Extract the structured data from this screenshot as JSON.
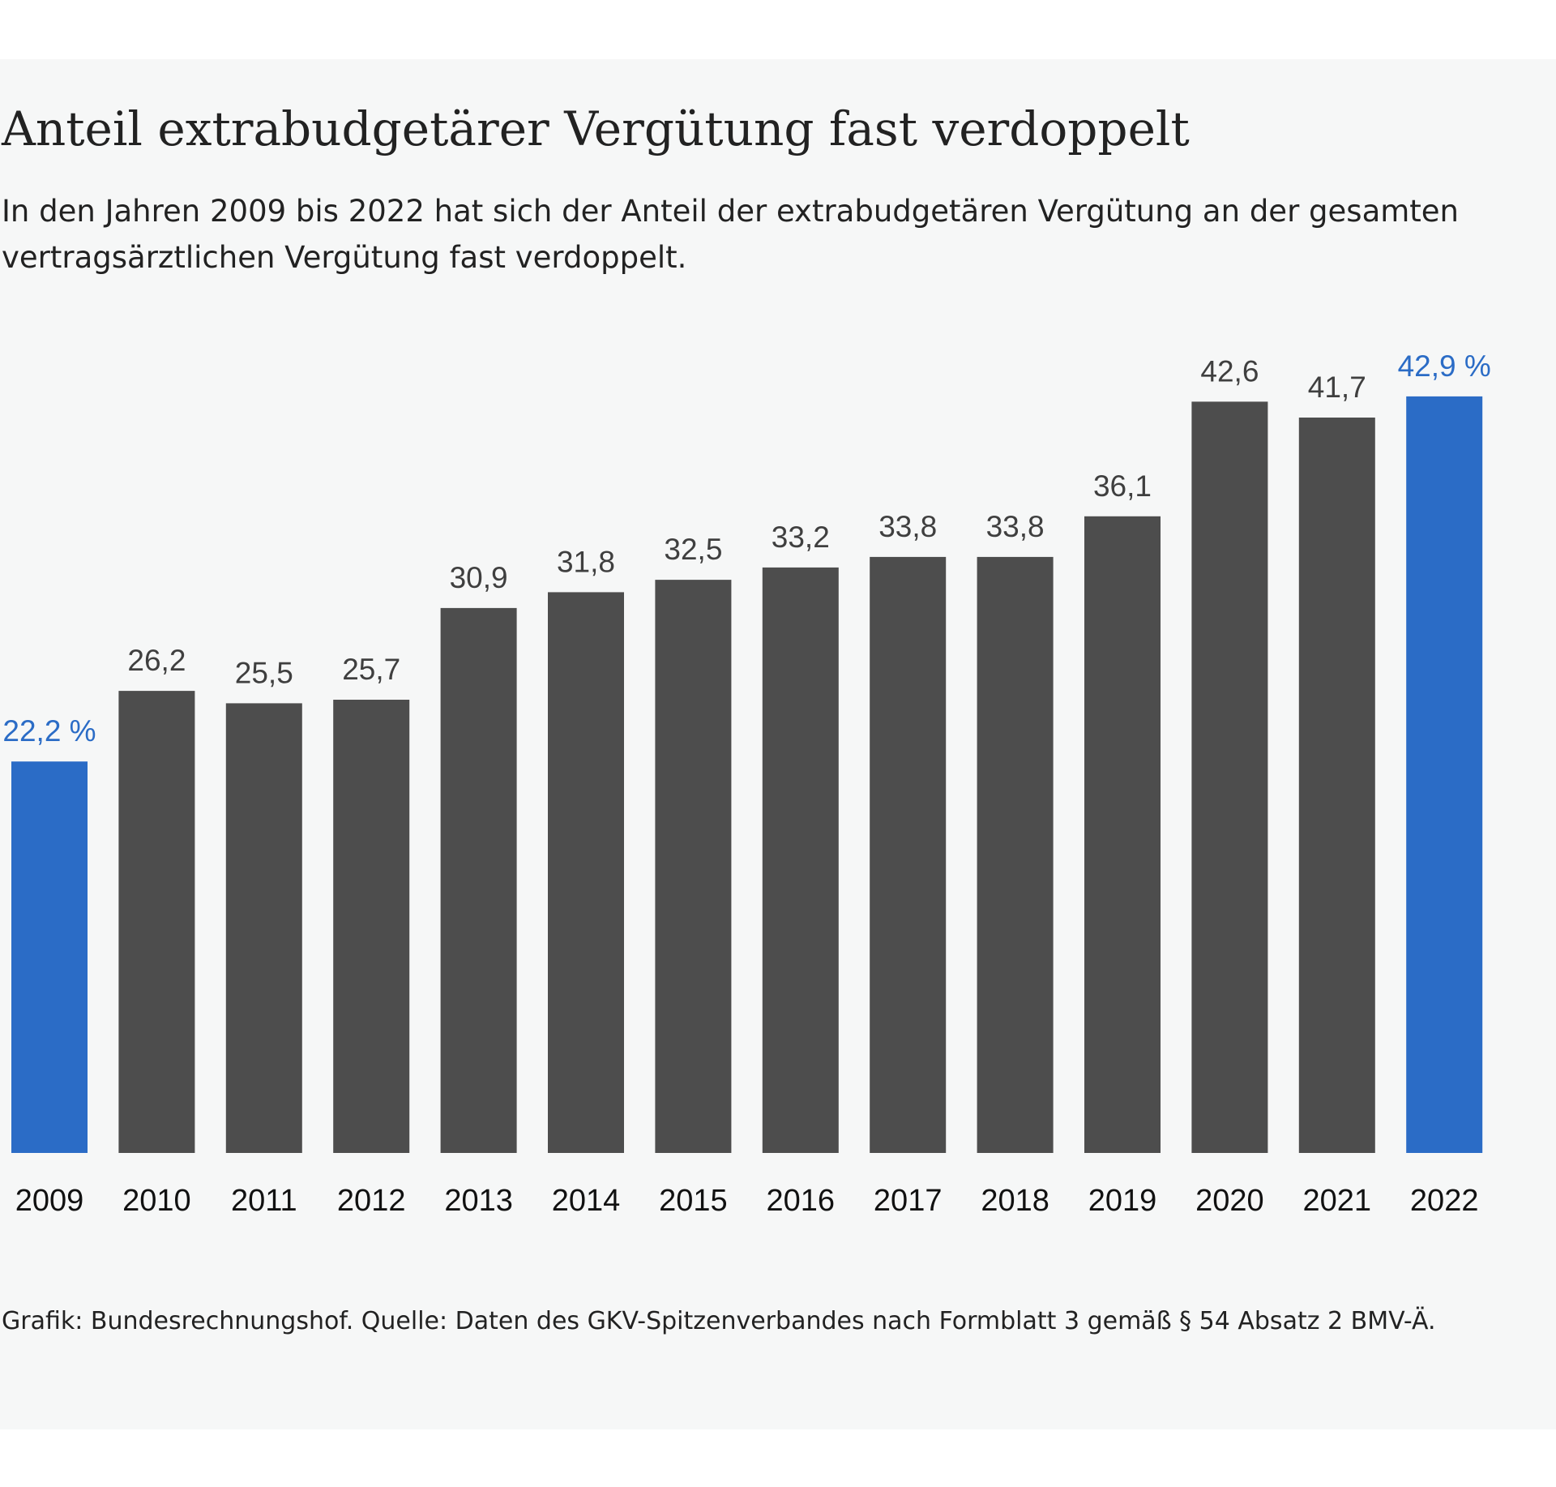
{
  "title": "Anteil extrabudgetärer Vergütung fast verdoppelt",
  "subtitle": "In den Jahren 2009 bis 2022 hat sich der Anteil der extrabudgetären Vergütung an der gesamten vertragsärztlichen Vergütung fast verdoppelt.",
  "source": "Grafik: Bundesrechnungshof. Quelle: Daten des GKV-Spitzenverbandes nach Formblatt 3 gemäß § 54 Absatz 2 BMV-Ä.",
  "colors": {
    "bar": "#4d4d4d",
    "highlight": "#2b6cc6",
    "label": "#3f3f3f",
    "tick": "#111111"
  },
  "chart_data": {
    "type": "bar",
    "title": "Anteil extrabudgetärer Vergütung fast verdoppelt",
    "xlabel": "",
    "ylabel": "",
    "unit": "%",
    "ylim": [
      0,
      43
    ],
    "grid": false,
    "categories": [
      "2009",
      "2010",
      "2011",
      "2012",
      "2013",
      "2014",
      "2015",
      "2016",
      "2017",
      "2018",
      "2019",
      "2020",
      "2021",
      "2022"
    ],
    "values": [
      22.2,
      26.2,
      25.5,
      25.7,
      30.9,
      31.8,
      32.5,
      33.2,
      33.8,
      33.8,
      36.1,
      42.6,
      41.7,
      42.9
    ],
    "value_labels": [
      "22,2 %",
      "26,2",
      "25,5",
      "25,7",
      "30,9",
      "31,8",
      "32,5",
      "33,2",
      "33,8",
      "33,8",
      "36,1",
      "42,6",
      "41,7",
      "42,9 %"
    ],
    "highlighted": [
      true,
      false,
      false,
      false,
      false,
      false,
      false,
      false,
      false,
      false,
      false,
      false,
      false,
      true
    ]
  }
}
